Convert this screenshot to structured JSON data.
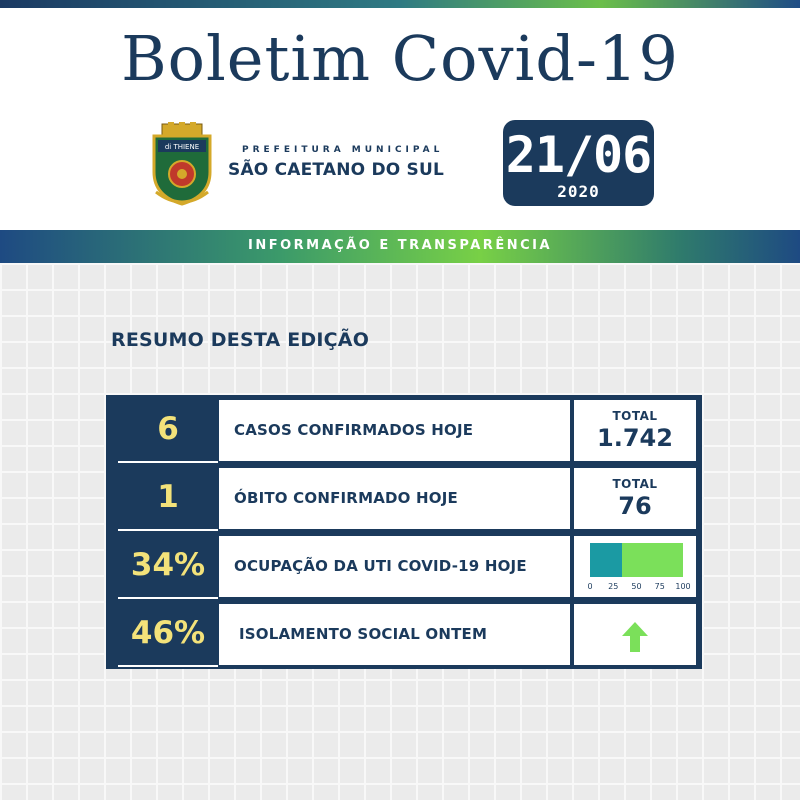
{
  "header": {
    "title": "Boletim Covid-19",
    "prefeitura_small": "PREFEITURA MUNICIPAL",
    "prefeitura_city": "SÃO CAETANO DO SUL",
    "date_day_month": "21/06",
    "date_year": "2020",
    "crest_text": "di THIENE"
  },
  "banner": {
    "text": "INFORMAÇÃO E TRANSPARÊNCIA"
  },
  "section_title": "RESUMO DESTA EDIÇÃO",
  "rows": [
    {
      "number": "6",
      "label": "CASOS CONFIRMADOS HOJE",
      "total_label": "TOTAL",
      "total_value": "1.742"
    },
    {
      "number": "1",
      "label": "ÓBITO CONFIRMADO HOJE",
      "total_label": "TOTAL",
      "total_value": "76"
    },
    {
      "number": "34%",
      "label": "OCUPAÇÃO DA UTI COVID-19 HOJE",
      "occupancy_percent": 34,
      "scale_ticks": [
        "0",
        "25",
        "50",
        "75",
        "100"
      ]
    },
    {
      "number": "46%",
      "label": "ISOLAMENTO SOCIAL ONTEM",
      "trend_icon": "arrow-up-icon"
    }
  ],
  "colors": {
    "navy": "#1b3a5c",
    "number_yellow": "#f3e27a",
    "green": "#7be05a",
    "teal": "#1b9aa3"
  }
}
